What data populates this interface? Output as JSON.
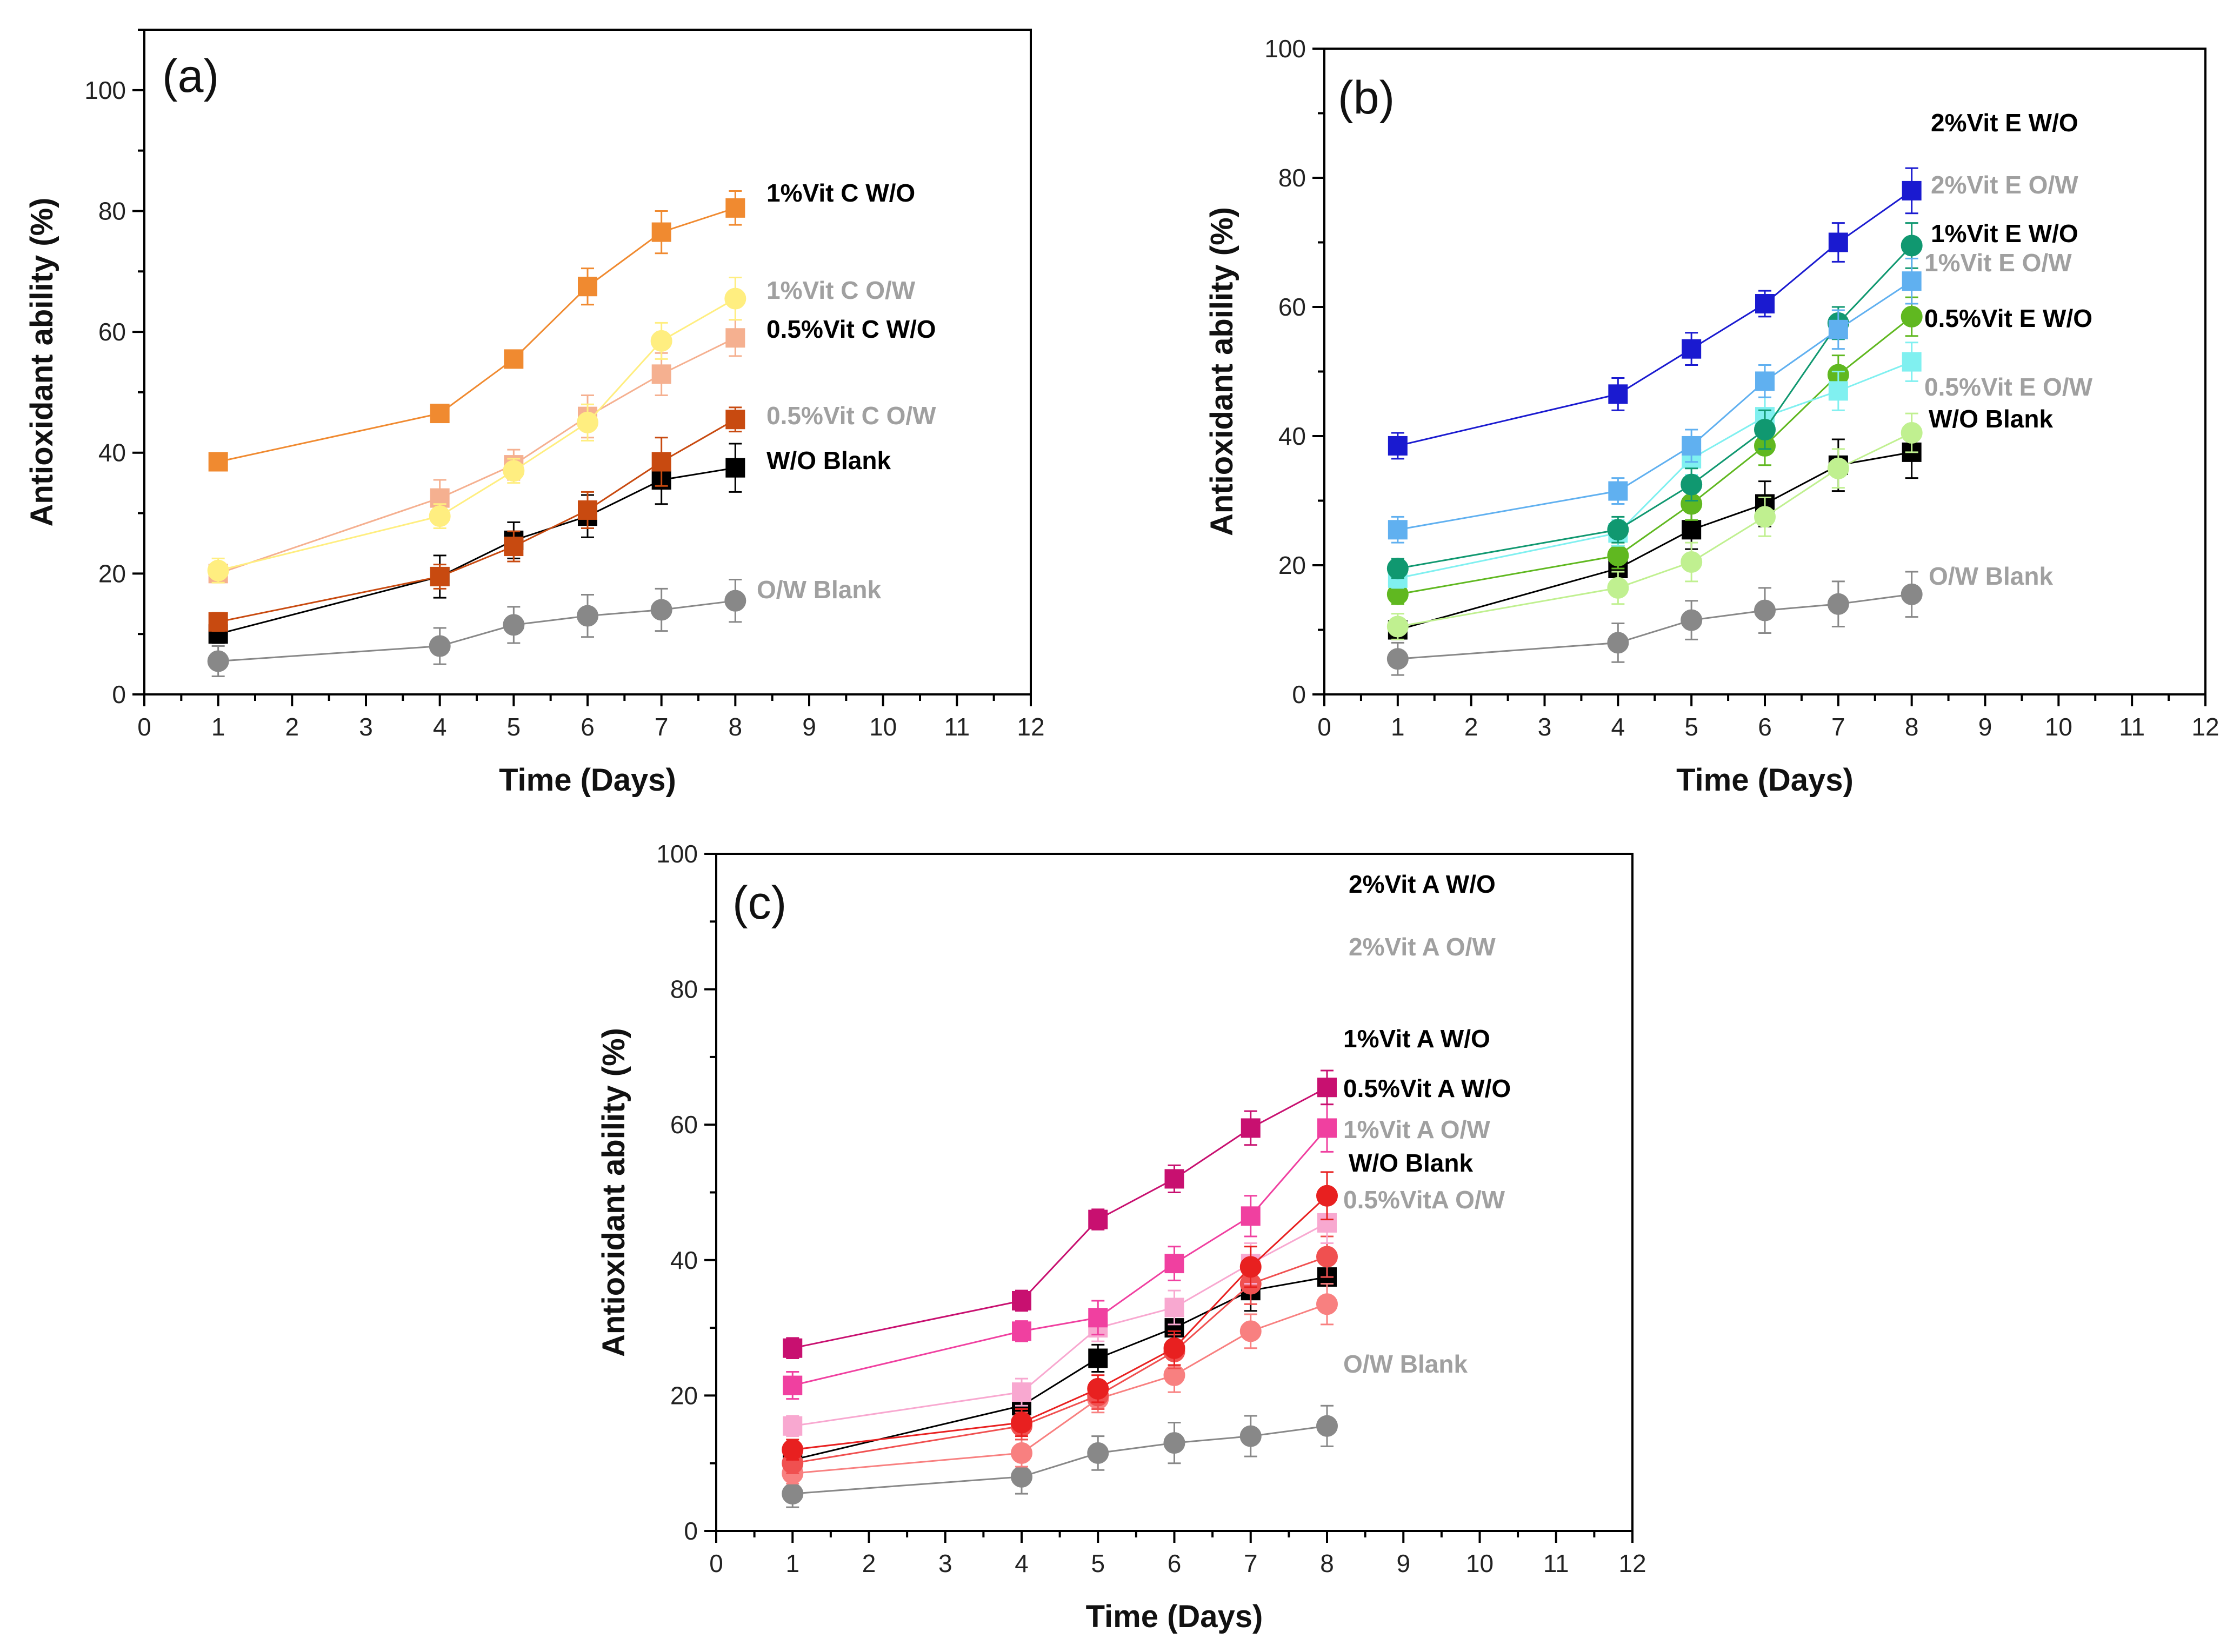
{
  "chart_data": [
    {
      "type": "line",
      "panel": "(a)",
      "xlabel": "Time (Days)",
      "ylabel": "Antioxidant ability (%)",
      "xlim": [
        0,
        12
      ],
      "ylim": [
        0,
        110
      ],
      "xticks": [
        0,
        1,
        2,
        3,
        4,
        5,
        6,
        7,
        8,
        9,
        10,
        11,
        12
      ],
      "yticks": [
        0,
        20,
        40,
        60,
        80,
        100
      ],
      "x": [
        1,
        4,
        5,
        6,
        7,
        8
      ],
      "series": [
        {
          "name": "1%Vit C W/O",
          "label": "1%Vit C W/O",
          "color": "#f08a30",
          "label_color": "#000000",
          "marker": "square",
          "values": [
            38.5,
            46.5,
            55.5,
            67.5,
            76.5,
            80.5
          ],
          "err": [
            1,
            1,
            1.2,
            3,
            3.5,
            2.8
          ]
        },
        {
          "name": "1%Vit C O/W",
          "label": "1%Vit C O/W",
          "color": "#ffee80",
          "label_color": "#a0a0a0",
          "marker": "circle",
          "values": [
            20.5,
            29.5,
            37,
            45,
            58.5,
            65.5
          ],
          "err": [
            2,
            2,
            2,
            3,
            3,
            3.5
          ]
        },
        {
          "name": "0.5%Vit C W/O",
          "label": "0.5%Vit C W/O",
          "color": "#f5b090",
          "label_color": "#000000",
          "marker": "square",
          "values": [
            20,
            32.5,
            38,
            46,
            53,
            59
          ],
          "err": [
            1.5,
            3,
            2.5,
            3.5,
            3.5,
            3
          ]
        },
        {
          "name": "0.5%Vit C O/W",
          "label": "0.5%Vit C O/W",
          "color": "#c84a10",
          "label_color": "#a0a0a0",
          "marker": "square",
          "values": [
            12,
            19.5,
            24.5,
            30.5,
            38.5,
            45.5
          ],
          "err": [
            1.5,
            2,
            2.5,
            3,
            4,
            2
          ]
        },
        {
          "name": "W/O Blank",
          "label": "W/O Blank",
          "color": "#000000",
          "label_color": "#000000",
          "marker": "square",
          "values": [
            10,
            19.5,
            25.5,
            29.5,
            35.5,
            37.5
          ],
          "err": [
            1.5,
            3.5,
            3,
            3.5,
            4,
            4
          ]
        },
        {
          "name": "O/W Blank",
          "label": "O/W Blank",
          "color": "#888888",
          "label_color": "#a0a0a0",
          "marker": "circle",
          "values": [
            5.5,
            8,
            11.5,
            13,
            14,
            15.5
          ],
          "err": [
            2.5,
            3,
            3,
            3.5,
            3.5,
            3.5
          ]
        }
      ]
    },
    {
      "type": "line",
      "panel": "(b)",
      "xlabel": "Time (Days)",
      "ylabel": "Antioxidant ability (%)",
      "xlim": [
        0,
        12
      ],
      "ylim": [
        0,
        100
      ],
      "xticks": [
        0,
        1,
        2,
        3,
        4,
        5,
        6,
        7,
        8,
        9,
        10,
        11,
        12
      ],
      "yticks": [
        0,
        20,
        40,
        60,
        80,
        100
      ],
      "x": [
        1,
        4,
        5,
        6,
        7,
        8
      ],
      "series": [
        {
          "name": "2%Vit E W/O",
          "label": "2%Vit E W/O",
          "color": "#1a1ad0",
          "label_color": "#000000",
          "marker": "square",
          "values": [
            38.5,
            46.5,
            53.5,
            60.5,
            70,
            78
          ],
          "err": [
            2,
            2.5,
            2.5,
            2,
            3,
            3.5
          ]
        },
        {
          "name": "2%Vit E O/W",
          "label": "2%Vit E O/W",
          "color": "#60b0f0",
          "label_color": "#a0a0a0",
          "marker": "square",
          "values": [
            25.5,
            31.5,
            38.5,
            48.5,
            56.5,
            64
          ],
          "err": [
            2,
            2,
            2.5,
            2.5,
            3,
            3.5
          ]
        },
        {
          "name": "1%Vit E W/O",
          "label": "1%Vit E W/O",
          "color": "#109870",
          "label_color": "#000000",
          "marker": "circle",
          "values": [
            19.5,
            25.5,
            32.5,
            41,
            57.5,
            69.5
          ],
          "err": [
            1.5,
            2,
            2.5,
            3,
            2.5,
            3.5
          ]
        },
        {
          "name": "1%Vit E O/W",
          "label": "1%Vit E O/W",
          "color": "#80f0f0",
          "label_color": "#a0a0a0",
          "marker": "square",
          "values": [
            18,
            25,
            36.5,
            43,
            47,
            51.5
          ],
          "err": [
            1.5,
            2,
            2.5,
            3,
            3,
            3
          ]
        },
        {
          "name": "0.5%Vit E W/O",
          "label": "0.5%Vit E W/O",
          "color": "#60b820",
          "label_color": "#000000",
          "marker": "circle",
          "values": [
            15.5,
            21.5,
            29.5,
            38.5,
            49.5,
            58.5
          ],
          "err": [
            1.5,
            2,
            2.5,
            3,
            3,
            3
          ]
        },
        {
          "name": "0.5%Vit E O/W",
          "label": "0.5%Vit E O/W",
          "color": "#c0f090",
          "label_color": "#a0a0a0",
          "marker": "circle",
          "values": [
            10.5,
            16.5,
            20.5,
            27.5,
            35,
            40.5
          ],
          "err": [
            2,
            2.5,
            3,
            3,
            3,
            3
          ]
        },
        {
          "name": "W/O Blank",
          "label": "W/O Blank",
          "color": "#000000",
          "label_color": "#000000",
          "marker": "square",
          "values": [
            10,
            19.5,
            25.5,
            29.5,
            35.5,
            37.5
          ],
          "err": [
            1.5,
            3.5,
            3,
            3.5,
            4,
            4
          ]
        },
        {
          "name": "O/W Blank",
          "label": "O/W Blank",
          "color": "#888888",
          "label_color": "#a0a0a0",
          "marker": "circle",
          "values": [
            5.5,
            8,
            11.5,
            13,
            14,
            15.5
          ],
          "err": [
            2.5,
            3,
            3,
            3.5,
            3.5,
            3.5
          ]
        }
      ]
    },
    {
      "type": "line",
      "panel": "(c)",
      "xlabel": "Time (Days)",
      "ylabel": "Antioxidant ability (%)",
      "xlim": [
        0,
        12
      ],
      "ylim": [
        0,
        100
      ],
      "xticks": [
        0,
        1,
        2,
        3,
        4,
        5,
        6,
        7,
        8,
        9,
        10,
        11,
        12
      ],
      "yticks": [
        0,
        20,
        40,
        60,
        80,
        100
      ],
      "x": [
        1,
        4,
        5,
        6,
        7,
        8
      ],
      "series": [
        {
          "name": "2%Vit A W/O",
          "label": "2%Vit A W/O",
          "color": "#c81070",
          "label_color": "#000000",
          "marker": "square",
          "values": [
            27,
            34,
            46,
            52,
            59.5,
            65.5
          ],
          "err": [
            1.5,
            1.5,
            1.5,
            2,
            2.5,
            2.5
          ]
        },
        {
          "name": "2%Vit A O/W",
          "label": "2%Vit A O/W",
          "color": "#f040a0",
          "label_color": "#a0a0a0",
          "marker": "square",
          "values": [
            21.5,
            29.5,
            31.5,
            39.5,
            46.5,
            59.5
          ],
          "err": [
            2,
            1.5,
            2.5,
            2.5,
            3,
            3.5
          ]
        },
        {
          "name": "1%Vit A W/O",
          "label": "1%Vit  A W/O",
          "color": "#e82020",
          "label_color": "#000000",
          "marker": "circle",
          "values": [
            12,
            16,
            21,
            27,
            39,
            49.5
          ],
          "err": [
            1.5,
            2,
            2,
            2.5,
            3,
            3.5
          ]
        },
        {
          "name": "1%Vit A O/W",
          "label": "1%Vit A O/W",
          "color": "#f8a8d0",
          "label_color": "#a0a0a0",
          "marker": "square",
          "values": [
            15.5,
            20.5,
            30,
            33,
            39.5,
            45.5
          ],
          "err": [
            1.5,
            2,
            2,
            2.5,
            3,
            3
          ]
        },
        {
          "name": "0.5%Vit A W/O",
          "label": "0.5%Vit A W/O",
          "color": "#f05050",
          "label_color": "#000000",
          "marker": "circle",
          "values": [
            10,
            15.5,
            20,
            26.5,
            36.5,
            40.5
          ],
          "err": [
            1.5,
            2,
            2,
            2.5,
            3,
            3
          ]
        },
        {
          "name": "0.5%VitA O/W",
          "label": "0.5%VitA O/W",
          "color": "#f88080",
          "label_color": "#a0a0a0",
          "marker": "circle",
          "values": [
            8.5,
            11.5,
            19.5,
            23,
            29.5,
            33.5
          ],
          "err": [
            1.5,
            2,
            2,
            2.5,
            2.5,
            3
          ]
        },
        {
          "name": "W/O Blank",
          "label": "W/O Blank",
          "color": "#000000",
          "label_color": "#000000",
          "marker": "square",
          "values": [
            10.5,
            18.5,
            25.5,
            30,
            35.5,
            37.5
          ],
          "err": [
            1.5,
            3,
            2,
            3,
            3,
            3
          ]
        },
        {
          "name": "O/W Blank",
          "label": "O/W Blank",
          "color": "#888888",
          "label_color": "#a0a0a0",
          "marker": "circle",
          "values": [
            5.5,
            8,
            11.5,
            13,
            14,
            15.5
          ],
          "err": [
            2,
            2.5,
            2.5,
            3,
            3,
            3
          ]
        }
      ]
    }
  ]
}
